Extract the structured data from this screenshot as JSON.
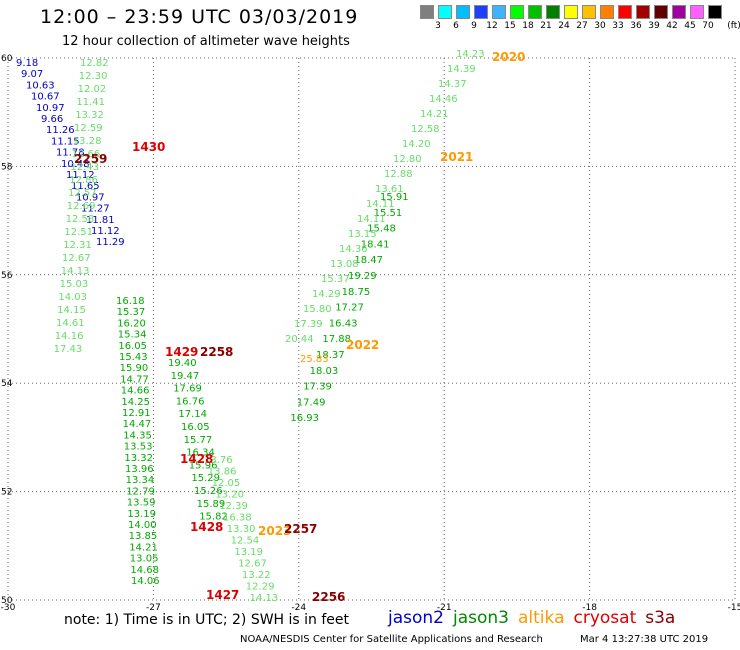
{
  "header": {
    "title": "12:00 – 23:59 UTC 03/03/2019",
    "subtitle": "12 hour collection of altimeter wave heights"
  },
  "color_scale": {
    "labels": [
      "3",
      "6",
      "9",
      "12",
      "15",
      "18",
      "21",
      "24",
      "27",
      "30",
      "33",
      "36",
      "39",
      "42",
      "45",
      "70"
    ],
    "unit": "(ft)",
    "colors": [
      "#7f7f7f",
      "#00ffff",
      "#00bfff",
      "#1f3fff",
      "#3cb4ff",
      "#00ff00",
      "#00c000",
      "#008000",
      "#ffff00",
      "#ffc000",
      "#ff8000",
      "#ff0000",
      "#a00000",
      "#600000",
      "#a000a0",
      "#ff60ff",
      "#000000"
    ]
  },
  "footer": {
    "note": "note: 1) Time is in UTC; 2) SWH is in feet",
    "satellites": [
      {
        "name": "jason2",
        "color": "#0000cc"
      },
      {
        "name": "jason3",
        "color": "#008800"
      },
      {
        "name": "altika",
        "color": "#ff9900"
      },
      {
        "name": "cryosat",
        "color": "#dd0000"
      },
      {
        "name": "s3a",
        "color": "#880000"
      }
    ],
    "credit": "NOAA/NESDIS Center for Satellite Applications and Research",
    "timestamp": "Mar  4 13:27:38 UTC 2019"
  },
  "map_data": {
    "lon_ticks": [
      "-30",
      "-27",
      "-24",
      "-21",
      "-18",
      "-15"
    ],
    "lat_ticks": [
      "60",
      "58",
      "56",
      "54",
      "52",
      "50"
    ],
    "lon_range": [
      -30,
      -15
    ],
    "lat_range": [
      50,
      60
    ],
    "tracks": [
      {
        "name": "track-jason2",
        "color": "#0000cc",
        "values": [
          "9.18",
          "9.07",
          "10.63",
          "10.67",
          "10.97",
          "9.66",
          "11.26",
          "11.15",
          "11.78",
          "10.48",
          "11.12",
          "11.65",
          "10.97",
          "11.27",
          "11.81",
          "11.12",
          "11.29"
        ]
      },
      {
        "name": "track-cryosat-1430",
        "color": "#66dd66",
        "values": [
          "12.82",
          "12.30",
          "12.02",
          "11.41",
          "13.32",
          "12.59",
          "13.28",
          "12.66",
          "12.43",
          "12.86",
          "12.57",
          "12.69",
          "12.58",
          "12.51",
          "12.31",
          "12.67",
          "14.13",
          "15.03",
          "14.03",
          "14.15",
          "14.61",
          "14.16",
          "17.43"
        ]
      },
      {
        "name": "track-jason3-west",
        "color": "#00aa00",
        "values": [
          "16.18",
          "15.37",
          "16.20",
          "15.34",
          "16.05",
          "15.43",
          "15.90",
          "14.77",
          "14.66",
          "14.25",
          "12.91",
          "14.47",
          "14.35",
          "13.53",
          "13.32",
          "13.96",
          "13.34",
          "12.79",
          "13.59",
          "13.19",
          "14.00",
          "13.85",
          "14.21",
          "13.05",
          "14.68",
          "14.06"
        ]
      },
      {
        "name": "track-jason3-east",
        "color": "#00aa00",
        "values": [
          "19.40",
          "19.47",
          "17.69",
          "16.76",
          "17.14",
          "16.05",
          "15.77",
          "16.34",
          "15.96",
          "15.29",
          "15.26",
          "15.89",
          "15.82"
        ]
      },
      {
        "name": "track-cryosat-1428",
        "color": "#66dd66",
        "values": [
          "13.76",
          "13.86",
          "12.05",
          "13.20",
          "12.39",
          "16.38",
          "13.30",
          "12.54",
          "13.19",
          "12.67",
          "13.22",
          "12.29",
          "14.13"
        ]
      },
      {
        "name": "track-jason3-north",
        "color": "#00aa00",
        "values": [
          "15.91",
          "15.51",
          "15.48",
          "18.41",
          "18.47",
          "19.29",
          "18.75",
          "17.27",
          "16.43",
          "17.88",
          "18.37",
          "18.03",
          "17.39",
          "17.49",
          "16.93"
        ]
      },
      {
        "name": "track-cryosat-2021",
        "color": "#66dd66",
        "values": [
          "14.23",
          "14.39",
          "14.37",
          "14.46",
          "14.21",
          "12.58",
          "14.20",
          "12.80",
          "12.88",
          "13.61",
          "14.11",
          "14.11",
          "13.15",
          "14.36",
          "13.08",
          "15.37",
          "14.29",
          "15.80",
          "17.39",
          "20.44"
        ]
      }
    ],
    "highlight_values": [
      {
        "text": "25.83",
        "color": "#ff9900"
      }
    ],
    "time_labels": [
      {
        "text": "1430",
        "color": "#dd0000"
      },
      {
        "text": "2259",
        "color": "#880000"
      },
      {
        "text": "2020",
        "color": "#ff9900"
      },
      {
        "text": "2021",
        "color": "#ff9900"
      },
      {
        "text": "2022",
        "color": "#ff9900"
      },
      {
        "text": "1429",
        "color": "#dd0000"
      },
      {
        "text": "2258",
        "color": "#880000"
      },
      {
        "text": "1428",
        "color": "#dd0000"
      },
      {
        "text": "1428",
        "color": "#dd0000"
      },
      {
        "text": "2023",
        "color": "#ff9900"
      },
      {
        "text": "2257",
        "color": "#880000"
      },
      {
        "text": "1427",
        "color": "#dd0000"
      },
      {
        "text": "2256",
        "color": "#880000"
      }
    ]
  }
}
